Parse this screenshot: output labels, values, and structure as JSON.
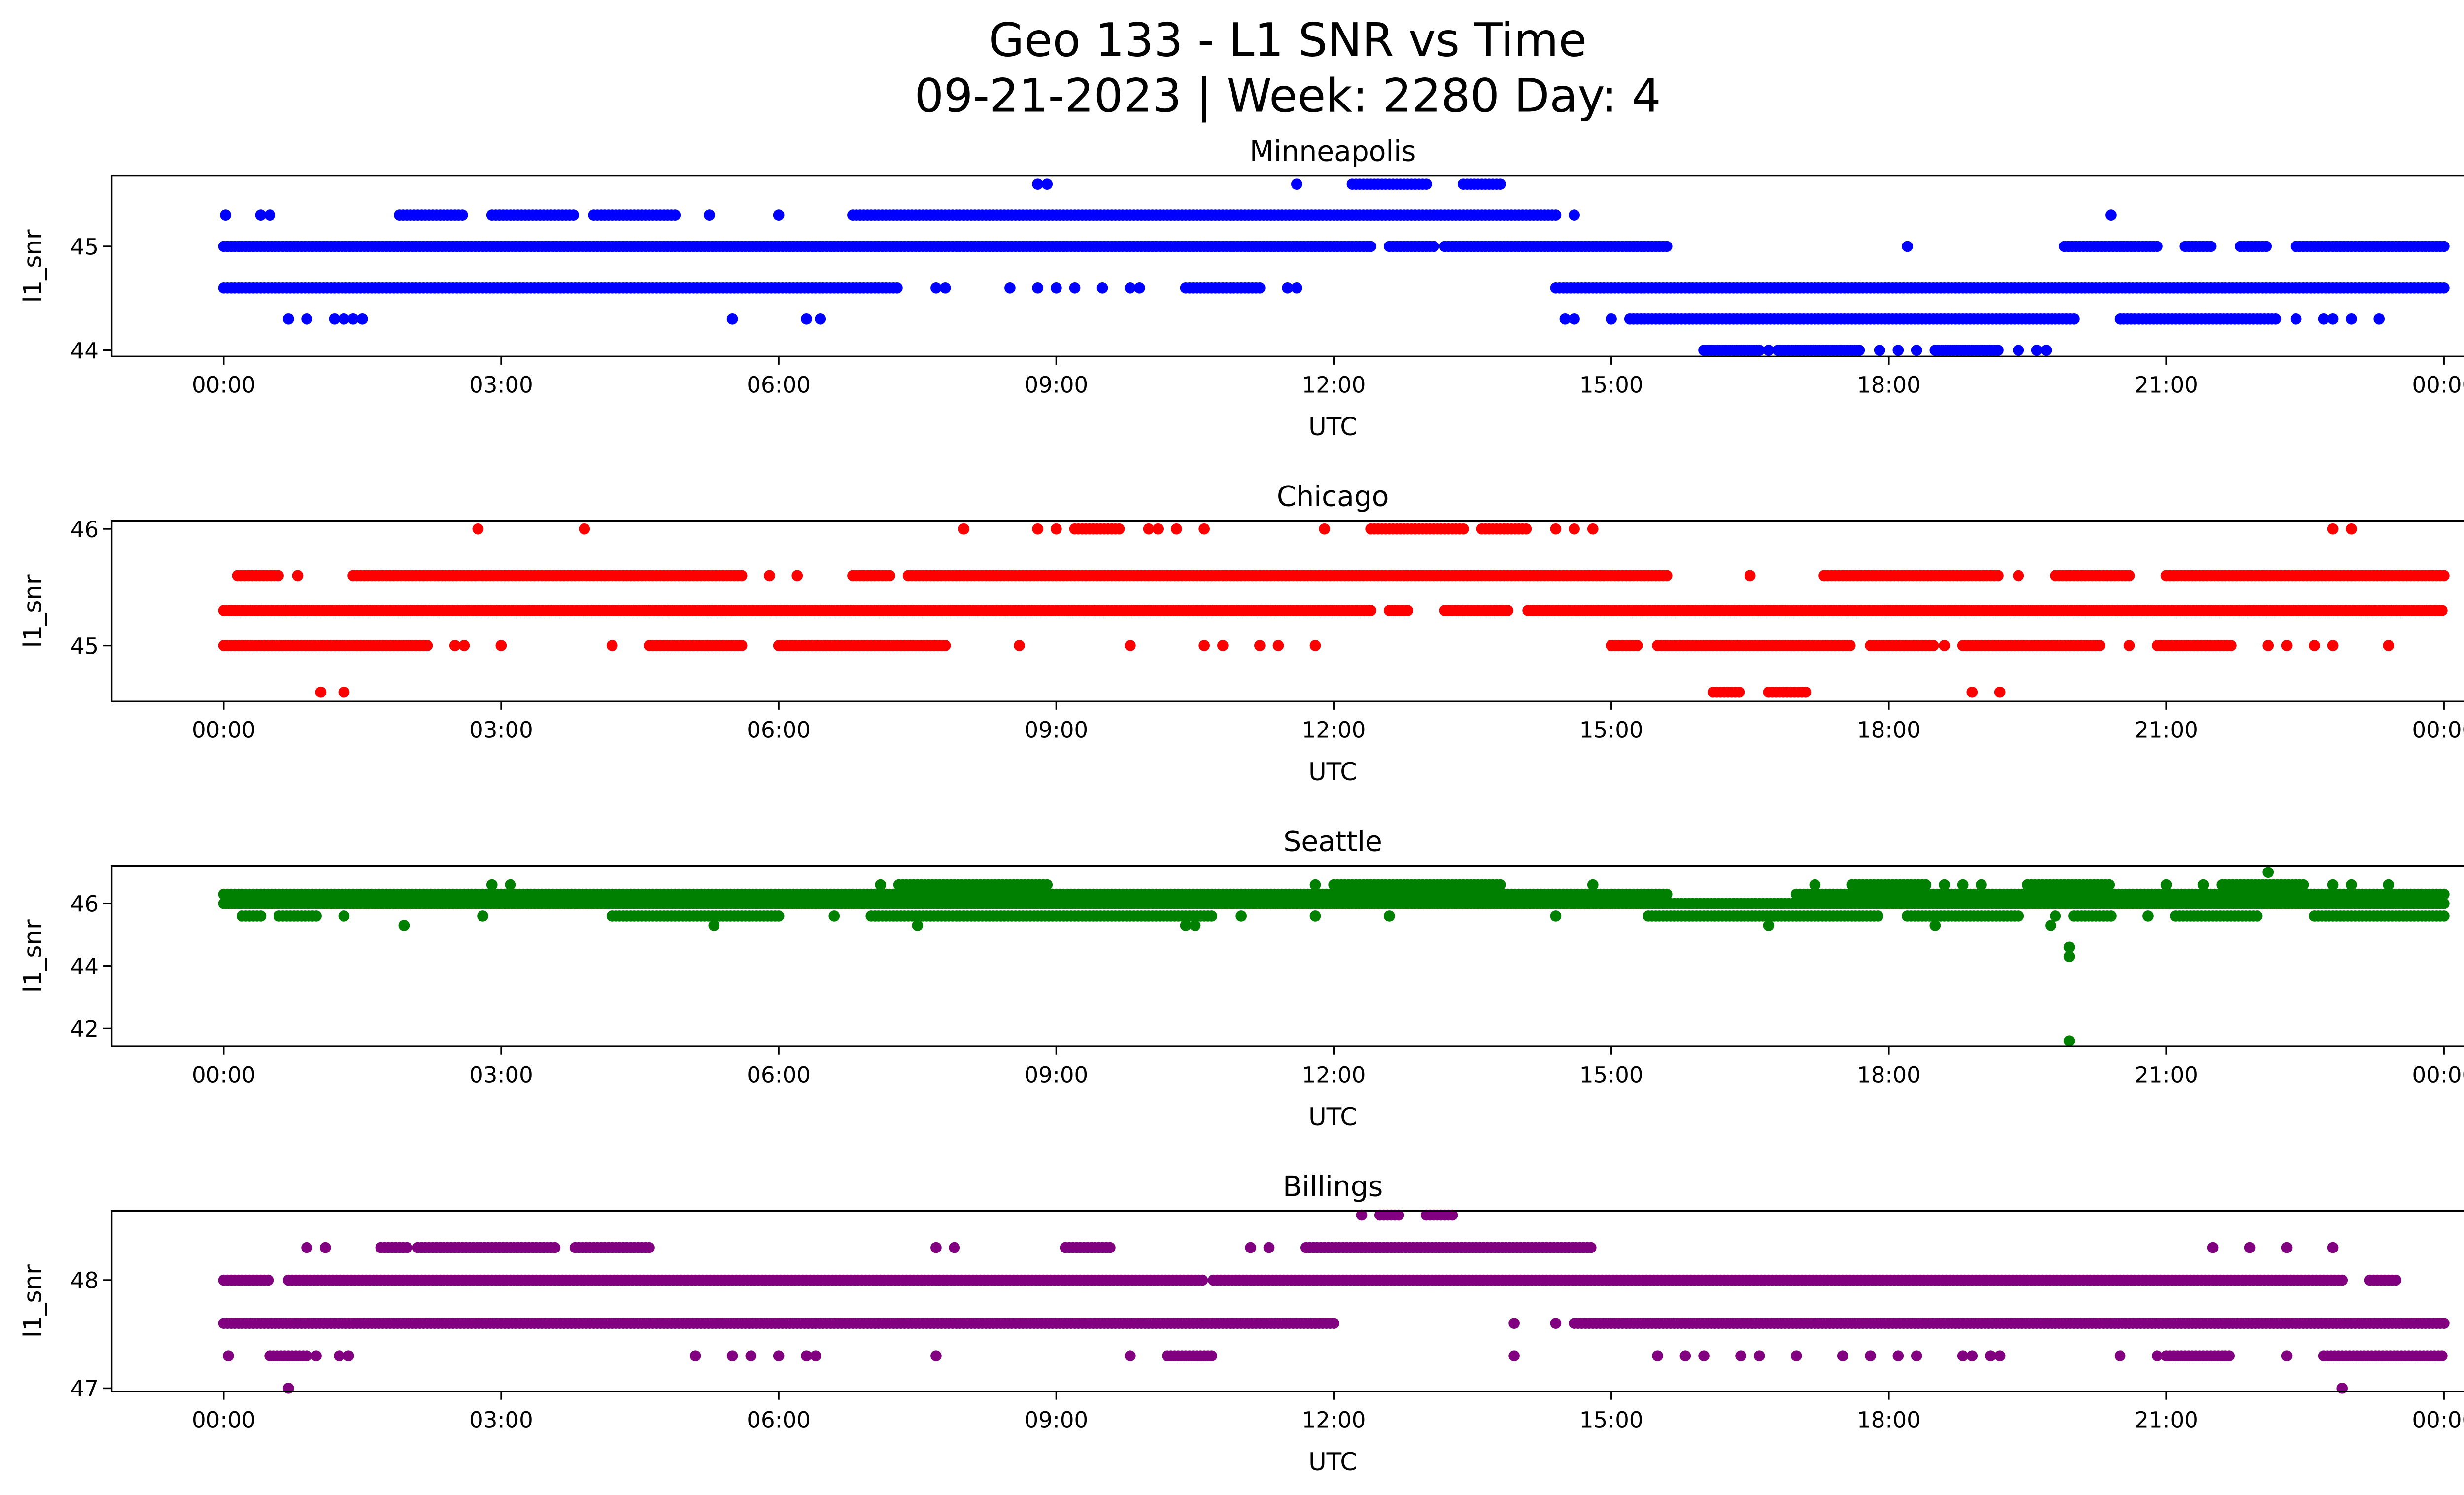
{
  "chart_data": {
    "type": "scatter",
    "title": "Geo 133 - L1 SNR vs Time",
    "subtitle": "09-21-2023 | Week: 2280 Day: 4",
    "xlabel": "UTC",
    "ylabel": "l1_snr",
    "x_units": "hours UTC",
    "xlim": [
      -1.21,
      25.19
    ],
    "x_ticks": [
      0,
      3,
      6,
      9,
      12,
      15,
      18,
      21,
      24
    ],
    "x_tick_labels": [
      "00:00",
      "03:00",
      "06:00",
      "09:00",
      "12:00",
      "15:00",
      "18:00",
      "21:00",
      "00:00"
    ],
    "panels": [
      {
        "name": "Minneapolis",
        "color": "#0000ff",
        "ylim": [
          43.94,
          45.68
        ],
        "y_ticks": [
          44,
          45
        ],
        "y_tick_labels": [
          "44",
          "45"
        ],
        "levels": [
          {
            "y": 45.6,
            "ranges": [
              [
                12.2,
                13.0
              ],
              [
                13.4,
                13.8
              ]
            ],
            "points": [
              8.8,
              8.9,
              11.6
            ]
          },
          {
            "y": 45.3,
            "ranges": [
              [
                1.9,
                2.6
              ],
              [
                2.9,
                3.8
              ],
              [
                4.0,
                4.9
              ],
              [
                6.8,
                14.4
              ]
            ],
            "points": [
              0.02,
              0.4,
              0.5,
              5.25,
              6.0,
              14.6,
              20.4
            ]
          },
          {
            "y": 45.0,
            "ranges": [
              [
                0,
                12.4
              ],
              [
                12.6,
                13.1
              ],
              [
                13.2,
                15.6
              ],
              [
                19.9,
                20.9
              ],
              [
                21.2,
                21.5
              ],
              [
                21.8,
                22.1
              ],
              [
                22.4,
                24
              ]
            ],
            "points": [
              18.2
            ]
          },
          {
            "y": 44.6,
            "ranges": [
              [
                0,
                7.3
              ],
              [
                10.4,
                11.2
              ],
              [
                14.4,
                24
              ]
            ],
            "points": [
              7.7,
              7.8,
              8.5,
              8.8,
              9.0,
              9.2,
              9.5,
              9.8,
              9.9,
              11.5,
              11.6
            ]
          },
          {
            "y": 44.3,
            "ranges": [
              [
                15.2,
                20.0
              ],
              [
                20.5,
                22.2
              ]
            ],
            "points": [
              0.7,
              0.9,
              1.2,
              1.3,
              1.4,
              1.5,
              5.5,
              6.3,
              6.45,
              14.5,
              14.6,
              15.0,
              22.4,
              22.7,
              22.8,
              23.0,
              23.3
            ]
          },
          {
            "y": 44.0,
            "ranges": [
              [
                16.0,
                16.6
              ],
              [
                16.8,
                17.7
              ],
              [
                18.5,
                19.2
              ]
            ],
            "points": [
              16.7,
              17.9,
              18.1,
              18.3,
              19.4,
              19.6,
              19.7
            ]
          }
        ]
      },
      {
        "name": "Chicago",
        "color": "#ff0000",
        "ylim": [
          44.52,
          46.07
        ],
        "y_ticks": [
          45,
          46
        ],
        "y_tick_labels": [
          "45",
          "46"
        ],
        "levels": [
          {
            "y": 46.0,
            "ranges": [
              [
                9.2,
                9.7
              ],
              [
                12.4,
                13.4
              ],
              [
                13.6,
                14.1
              ]
            ],
            "points": [
              2.75,
              3.9,
              8.0,
              8.8,
              9.0,
              10.0,
              10.1,
              10.3,
              10.6,
              11.9,
              14.4,
              14.6,
              14.8,
              22.8,
              23.0
            ]
          },
          {
            "y": 45.6,
            "ranges": [
              [
                0.15,
                0.6
              ],
              [
                1.4,
                5.6
              ],
              [
                6.8,
                7.2
              ],
              [
                7.4,
                15.6
              ],
              [
                17.3,
                19.2
              ],
              [
                19.8,
                20.6
              ],
              [
                21.0,
                24
              ]
            ],
            "points": [
              0.8,
              5.9,
              6.2,
              16.5,
              19.4
            ]
          },
          {
            "y": 45.3,
            "ranges": [
              [
                0,
                12.4
              ],
              [
                12.6,
                12.8
              ],
              [
                13.2,
                13.9
              ],
              [
                14.1,
                24
              ]
            ],
            "points": []
          },
          {
            "y": 45.0,
            "ranges": [
              [
                0,
                2.2
              ],
              [
                4.6,
                5.6
              ],
              [
                6.0,
                7.8
              ],
              [
                15.0,
                15.3
              ],
              [
                15.5,
                17.6
              ],
              [
                17.8,
                18.5
              ],
              [
                18.8,
                20.3
              ],
              [
                20.9,
                21.7
              ]
            ],
            "points": [
              2.5,
              2.6,
              3.0,
              4.2,
              8.6,
              9.8,
              10.6,
              10.8,
              11.2,
              11.4,
              11.8,
              18.6,
              20.6,
              22.1,
              22.3,
              22.6,
              22.8,
              23.4
            ]
          },
          {
            "y": 44.6,
            "ranges": [
              [
                16.1,
                16.4
              ],
              [
                16.7,
                17.1
              ]
            ],
            "points": [
              1.05,
              1.3,
              18.9,
              19.2
            ]
          }
        ]
      },
      {
        "name": "Seattle",
        "color": "#008000",
        "ylim": [
          41.42,
          47.21
        ],
        "y_ticks": [
          42,
          44,
          46
        ],
        "y_tick_labels": [
          "42",
          "44",
          "46"
        ],
        "levels": [
          {
            "y": 47.0,
            "ranges": [],
            "points": [
              22.1
            ]
          },
          {
            "y": 46.6,
            "ranges": [
              [
                7.3,
                8.9
              ],
              [
                12.0,
                13.8
              ],
              [
                17.6,
                18.4
              ],
              [
                19.5,
                20.4
              ],
              [
                21.6,
                22.5
              ]
            ],
            "points": [
              2.9,
              3.1,
              7.1,
              11.8,
              14.8,
              17.2,
              18.6,
              18.8,
              19.0,
              21.0,
              21.4,
              22.8,
              23.0,
              23.4
            ]
          },
          {
            "y": 46.3,
            "ranges": [
              [
                0,
                15.6
              ],
              [
                17.0,
                24
              ]
            ],
            "points": []
          },
          {
            "y": 46.0,
            "ranges": [
              [
                0,
                24
              ]
            ],
            "points": []
          },
          {
            "y": 45.6,
            "ranges": [
              [
                0.2,
                0.4
              ],
              [
                0.6,
                1.0
              ],
              [
                4.2,
                6.0
              ],
              [
                7.0,
                10.7
              ],
              [
                15.4,
                17.9
              ],
              [
                18.2,
                19.4
              ],
              [
                20.0,
                20.4
              ],
              [
                21.1,
                22.0
              ],
              [
                22.6,
                24
              ]
            ],
            "points": [
              1.3,
              2.8,
              6.6,
              11.0,
              11.8,
              12.6,
              14.4,
              19.8,
              20.8
            ]
          },
          {
            "y": 45.3,
            "ranges": [],
            "points": [
              1.95,
              5.3,
              7.5,
              10.4,
              10.5,
              16.7,
              18.5,
              19.75
            ]
          },
          {
            "y": 44.6,
            "ranges": [],
            "points": [
              19.95
            ]
          },
          {
            "y": 44.3,
            "ranges": [],
            "points": [
              19.95
            ]
          },
          {
            "y": 41.6,
            "ranges": [],
            "points": [
              19.95
            ]
          }
        ]
      },
      {
        "name": "Billings",
        "color": "#800080",
        "ylim": [
          46.97,
          48.64
        ],
        "y_ticks": [
          47,
          48
        ],
        "y_tick_labels": [
          "47",
          "48"
        ],
        "levels": [
          {
            "y": 48.6,
            "ranges": [
              [
                12.5,
                12.7
              ],
              [
                13.0,
                13.3
              ]
            ],
            "points": [
              12.3
            ]
          },
          {
            "y": 48.3,
            "ranges": [
              [
                1.7,
                2.0
              ],
              [
                2.1,
                3.6
              ],
              [
                3.8,
                4.6
              ],
              [
                9.1,
                9.6
              ],
              [
                11.7,
                14.8
              ]
            ],
            "points": [
              0.9,
              1.1,
              7.7,
              7.9,
              11.1,
              11.3,
              21.5,
              21.9,
              22.3,
              22.8
            ]
          },
          {
            "y": 48.0,
            "ranges": [
              [
                0,
                0.5
              ],
              [
                0.7,
                10.6
              ],
              [
                10.7,
                22.9
              ],
              [
                23.2,
                23.5
              ]
            ],
            "points": []
          },
          {
            "y": 47.6,
            "ranges": [
              [
                0,
                12.0
              ],
              [
                14.6,
                24
              ]
            ],
            "points": [
              13.95,
              14.4
            ]
          },
          {
            "y": 47.3,
            "ranges": [
              [
                0.5,
                0.9
              ],
              [
                10.2,
                10.7
              ],
              [
                21.0,
                21.7
              ],
              [
                22.7,
                24
              ]
            ],
            "points": [
              0.05,
              1.0,
              1.25,
              1.35,
              5.1,
              5.5,
              5.7,
              6.0,
              6.3,
              6.4,
              7.7,
              9.8,
              13.95,
              15.5,
              15.8,
              16.0,
              16.4,
              16.6,
              17.0,
              17.5,
              17.8,
              18.1,
              18.3,
              18.8,
              18.9,
              19.1,
              19.2,
              20.5,
              20.9,
              22.3
            ]
          },
          {
            "y": 47.0,
            "ranges": [],
            "points": [
              0.7,
              22.9
            ]
          }
        ]
      }
    ]
  }
}
